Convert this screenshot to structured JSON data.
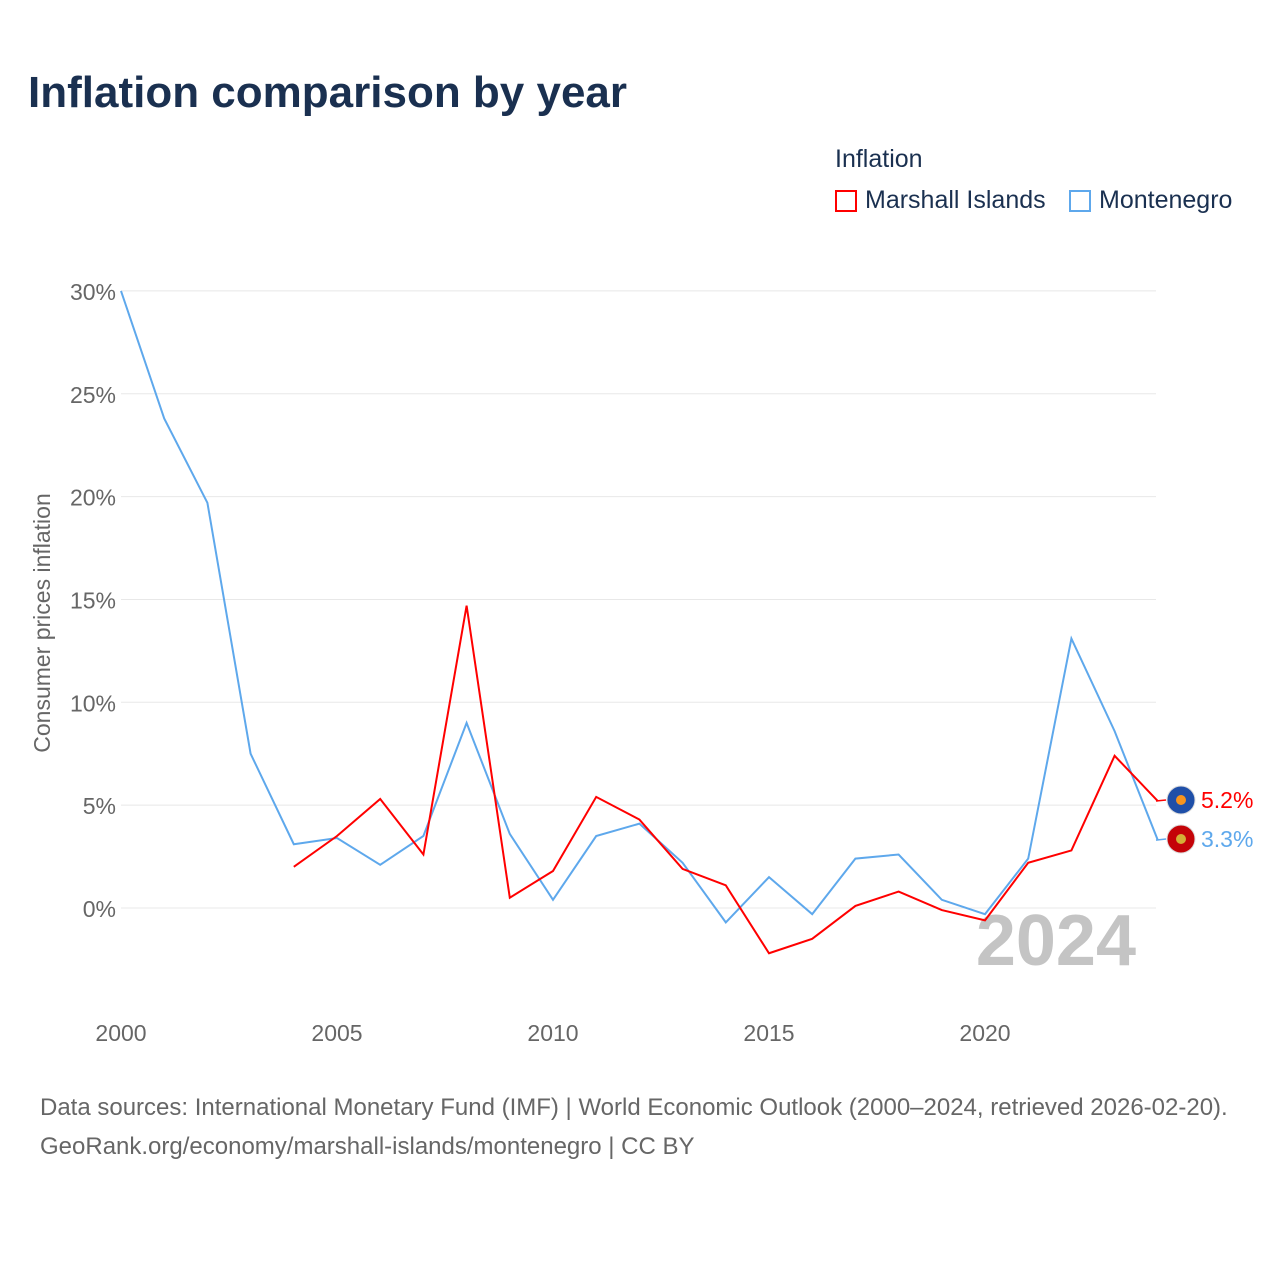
{
  "title": "Inflation comparison by year",
  "legend": {
    "title": "Inflation",
    "items": [
      {
        "label": "Marshall Islands",
        "color": "#ff0000"
      },
      {
        "label": "Montenegro",
        "color": "#5ea8ec"
      }
    ]
  },
  "footer": {
    "sources": "Data sources: International Monetary Fund (IMF) | World Economic Outlook (2000–2024, retrieved 2026-02-20).",
    "link": "GeoRank.org/economy/marshall-islands/montenegro | CC BY"
  },
  "chart_data": {
    "type": "line",
    "title": "Inflation comparison by year",
    "xlabel": "",
    "ylabel": "Consumer prices inflation",
    "xlim": [
      2000,
      2024
    ],
    "ylim": [
      -5,
      30
    ],
    "x_ticks": [
      "2000",
      "2005",
      "2010",
      "2015",
      "2020"
    ],
    "y_ticks": [
      "0%",
      "5%",
      "10%",
      "15%",
      "20%",
      "25%",
      "30%"
    ],
    "y_tick_values": [
      0,
      5,
      10,
      15,
      20,
      25,
      30
    ],
    "watermark_year": "2024",
    "series": [
      {
        "name": "Marshall Islands",
        "color": "#ff0000",
        "end_label": "5.2%",
        "x": [
          2004,
          2005,
          2006,
          2007,
          2008,
          2009,
          2010,
          2011,
          2012,
          2013,
          2014,
          2015,
          2016,
          2017,
          2018,
          2019,
          2020,
          2021,
          2022,
          2023,
          2024
        ],
        "values": [
          2.0,
          3.5,
          5.3,
          2.6,
          14.7,
          0.5,
          1.8,
          5.4,
          4.3,
          1.9,
          1.1,
          -2.2,
          -1.5,
          0.1,
          0.8,
          -0.1,
          -0.6,
          2.2,
          2.8,
          7.4,
          5.2
        ]
      },
      {
        "name": "Montenegro",
        "color": "#5ea8ec",
        "end_label": "3.3%",
        "x": [
          2000,
          2001,
          2002,
          2003,
          2004,
          2005,
          2006,
          2007,
          2008,
          2009,
          2010,
          2011,
          2012,
          2013,
          2014,
          2015,
          2016,
          2017,
          2018,
          2019,
          2020,
          2021,
          2022,
          2023,
          2024
        ],
        "values": [
          30.0,
          23.8,
          19.7,
          7.5,
          3.1,
          3.4,
          2.1,
          3.5,
          9.0,
          3.6,
          0.4,
          3.5,
          4.1,
          2.2,
          -0.7,
          1.5,
          -0.3,
          2.4,
          2.6,
          0.4,
          -0.3,
          2.4,
          13.1,
          8.6,
          3.3
        ]
      }
    ]
  }
}
